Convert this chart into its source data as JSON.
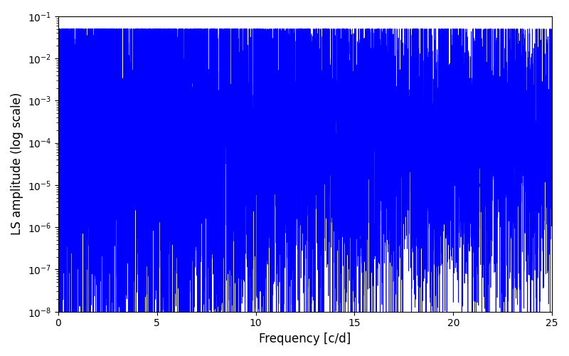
{
  "xlabel": "Frequency [c/d]",
  "ylabel": "LS amplitude (log scale)",
  "line_color": "blue",
  "xlim": [
    0,
    25
  ],
  "ylim": [
    1e-08,
    0.1
  ],
  "background_color": "#ffffff",
  "figsize": [
    8.0,
    5.0
  ],
  "dpi": 100,
  "seed": 12345,
  "n_points": 8000,
  "freq_max": 25.0
}
